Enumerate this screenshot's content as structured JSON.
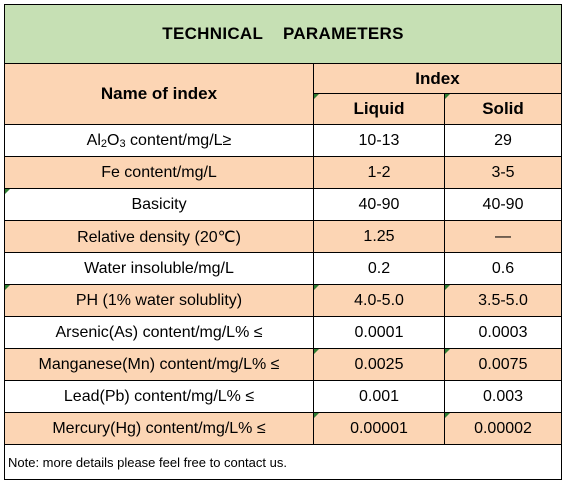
{
  "title": "TECHNICAL    PARAMETERS",
  "header": {
    "name_of_index": "Name of index",
    "index": "Index",
    "liquid": "Liquid",
    "solid": "Solid"
  },
  "rows": [
    {
      "name_pre": "Al",
      "name_sub1": "2",
      "name_mid": "O",
      "name_sub2": "3",
      "name_post": " content/mg/L≥",
      "liquid": "10-13",
      "solid": "29"
    },
    {
      "name": "Fe content/mg/L",
      "liquid": "1-2",
      "solid": "3-5"
    },
    {
      "name": "Basicity",
      "liquid": "40-90",
      "solid": "40-90"
    },
    {
      "name": "Relative density (20℃)",
      "liquid": "1.25",
      "solid": "—"
    },
    {
      "name": "Water insoluble/mg/L",
      "liquid": "0.2",
      "solid": "0.6"
    },
    {
      "name": "PH (1% water solublity)",
      "liquid": "4.0-5.0",
      "solid": "3.5-5.0"
    },
    {
      "name": "Arsenic(As) content/mg/L% ≤",
      "liquid": "0.0001",
      "solid": "0.0003"
    },
    {
      "name": "Manganese(Mn) content/mg/L% ≤",
      "liquid": "0.0025",
      "solid": "0.0075"
    },
    {
      "name": "Lead(Pb) content/mg/L% ≤",
      "liquid": "0.001",
      "solid": "0.003"
    },
    {
      "name": "Mercury(Hg) content/mg/L% ≤",
      "liquid": "0.00001",
      "solid": "0.00002"
    }
  ],
  "note": "Note: more details please feel free to contact us.",
  "colors": {
    "title_bg": "#c6e0b4",
    "peach_bg": "#fcd5b4",
    "corner_marker": "#2e7d32"
  }
}
